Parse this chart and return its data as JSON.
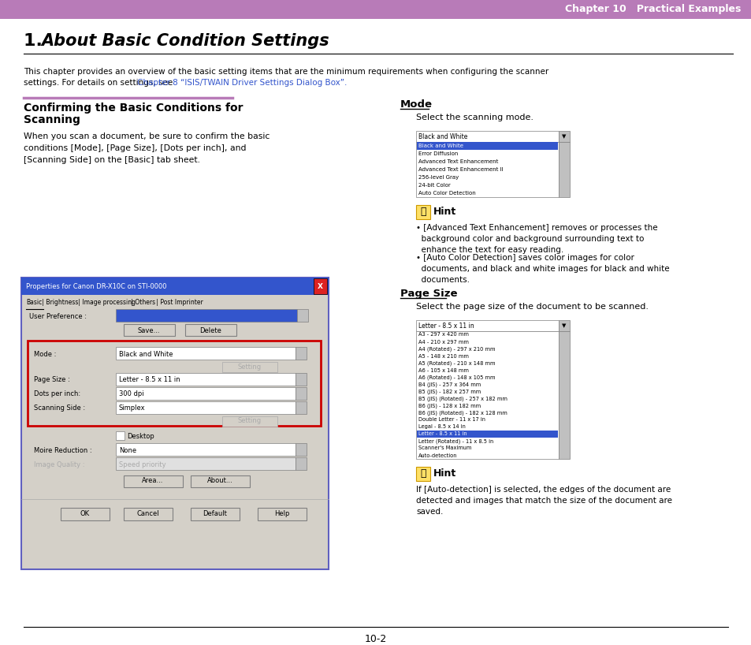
{
  "page_bg": "#ffffff",
  "header_bg": "#b87bb8",
  "header_text": "Chapter 10   Practical Examples",
  "header_text_color": "#ffffff",
  "intro_link_color": "#3355cc",
  "divider_left_color": "#b87bb8",
  "dialog_title_bg": "#3355cc",
  "dialog_title_text": "Properties for Canon DR-X10C on STI-0000",
  "dialog_red_border": "#cc0000",
  "dialog_bg": "#d4d0c8",
  "footer_text": "10-2",
  "mode_items": [
    "Black and White",
    "Error Diffusion",
    "Advanced Text Enhancement",
    "Advanced Text Enhancement II",
    "256-level Gray",
    "24-bit Color",
    "Auto Color Detection"
  ],
  "page_size_items": [
    "A3 - 297 x 420 mm",
    "A4 - 210 x 297 mm",
    "A4 (Rotated) - 297 x 210 mm",
    "A5 - 148 x 210 mm",
    "A5 (Rotated) - 210 x 148 mm",
    "A6 - 105 x 148 mm",
    "A6 (Rotated) - 148 x 105 mm",
    "B4 (JIS) - 257 x 364 mm",
    "B5 (JIS) - 182 x 257 mm",
    "B5 (JIS) (Rotated) - 257 x 182 mm",
    "B6 (JIS) - 128 x 182 mm",
    "B6 (JIS) (Rotated) - 182 x 128 mm",
    "Double Letter - 11 x 17 in",
    "Legal - 8.5 x 14 in",
    "Letter - 8.5 x 11 in",
    "Letter (Rotated) - 11 x 8.5 in",
    "Scanner's Maximum",
    "Auto-detection"
  ]
}
